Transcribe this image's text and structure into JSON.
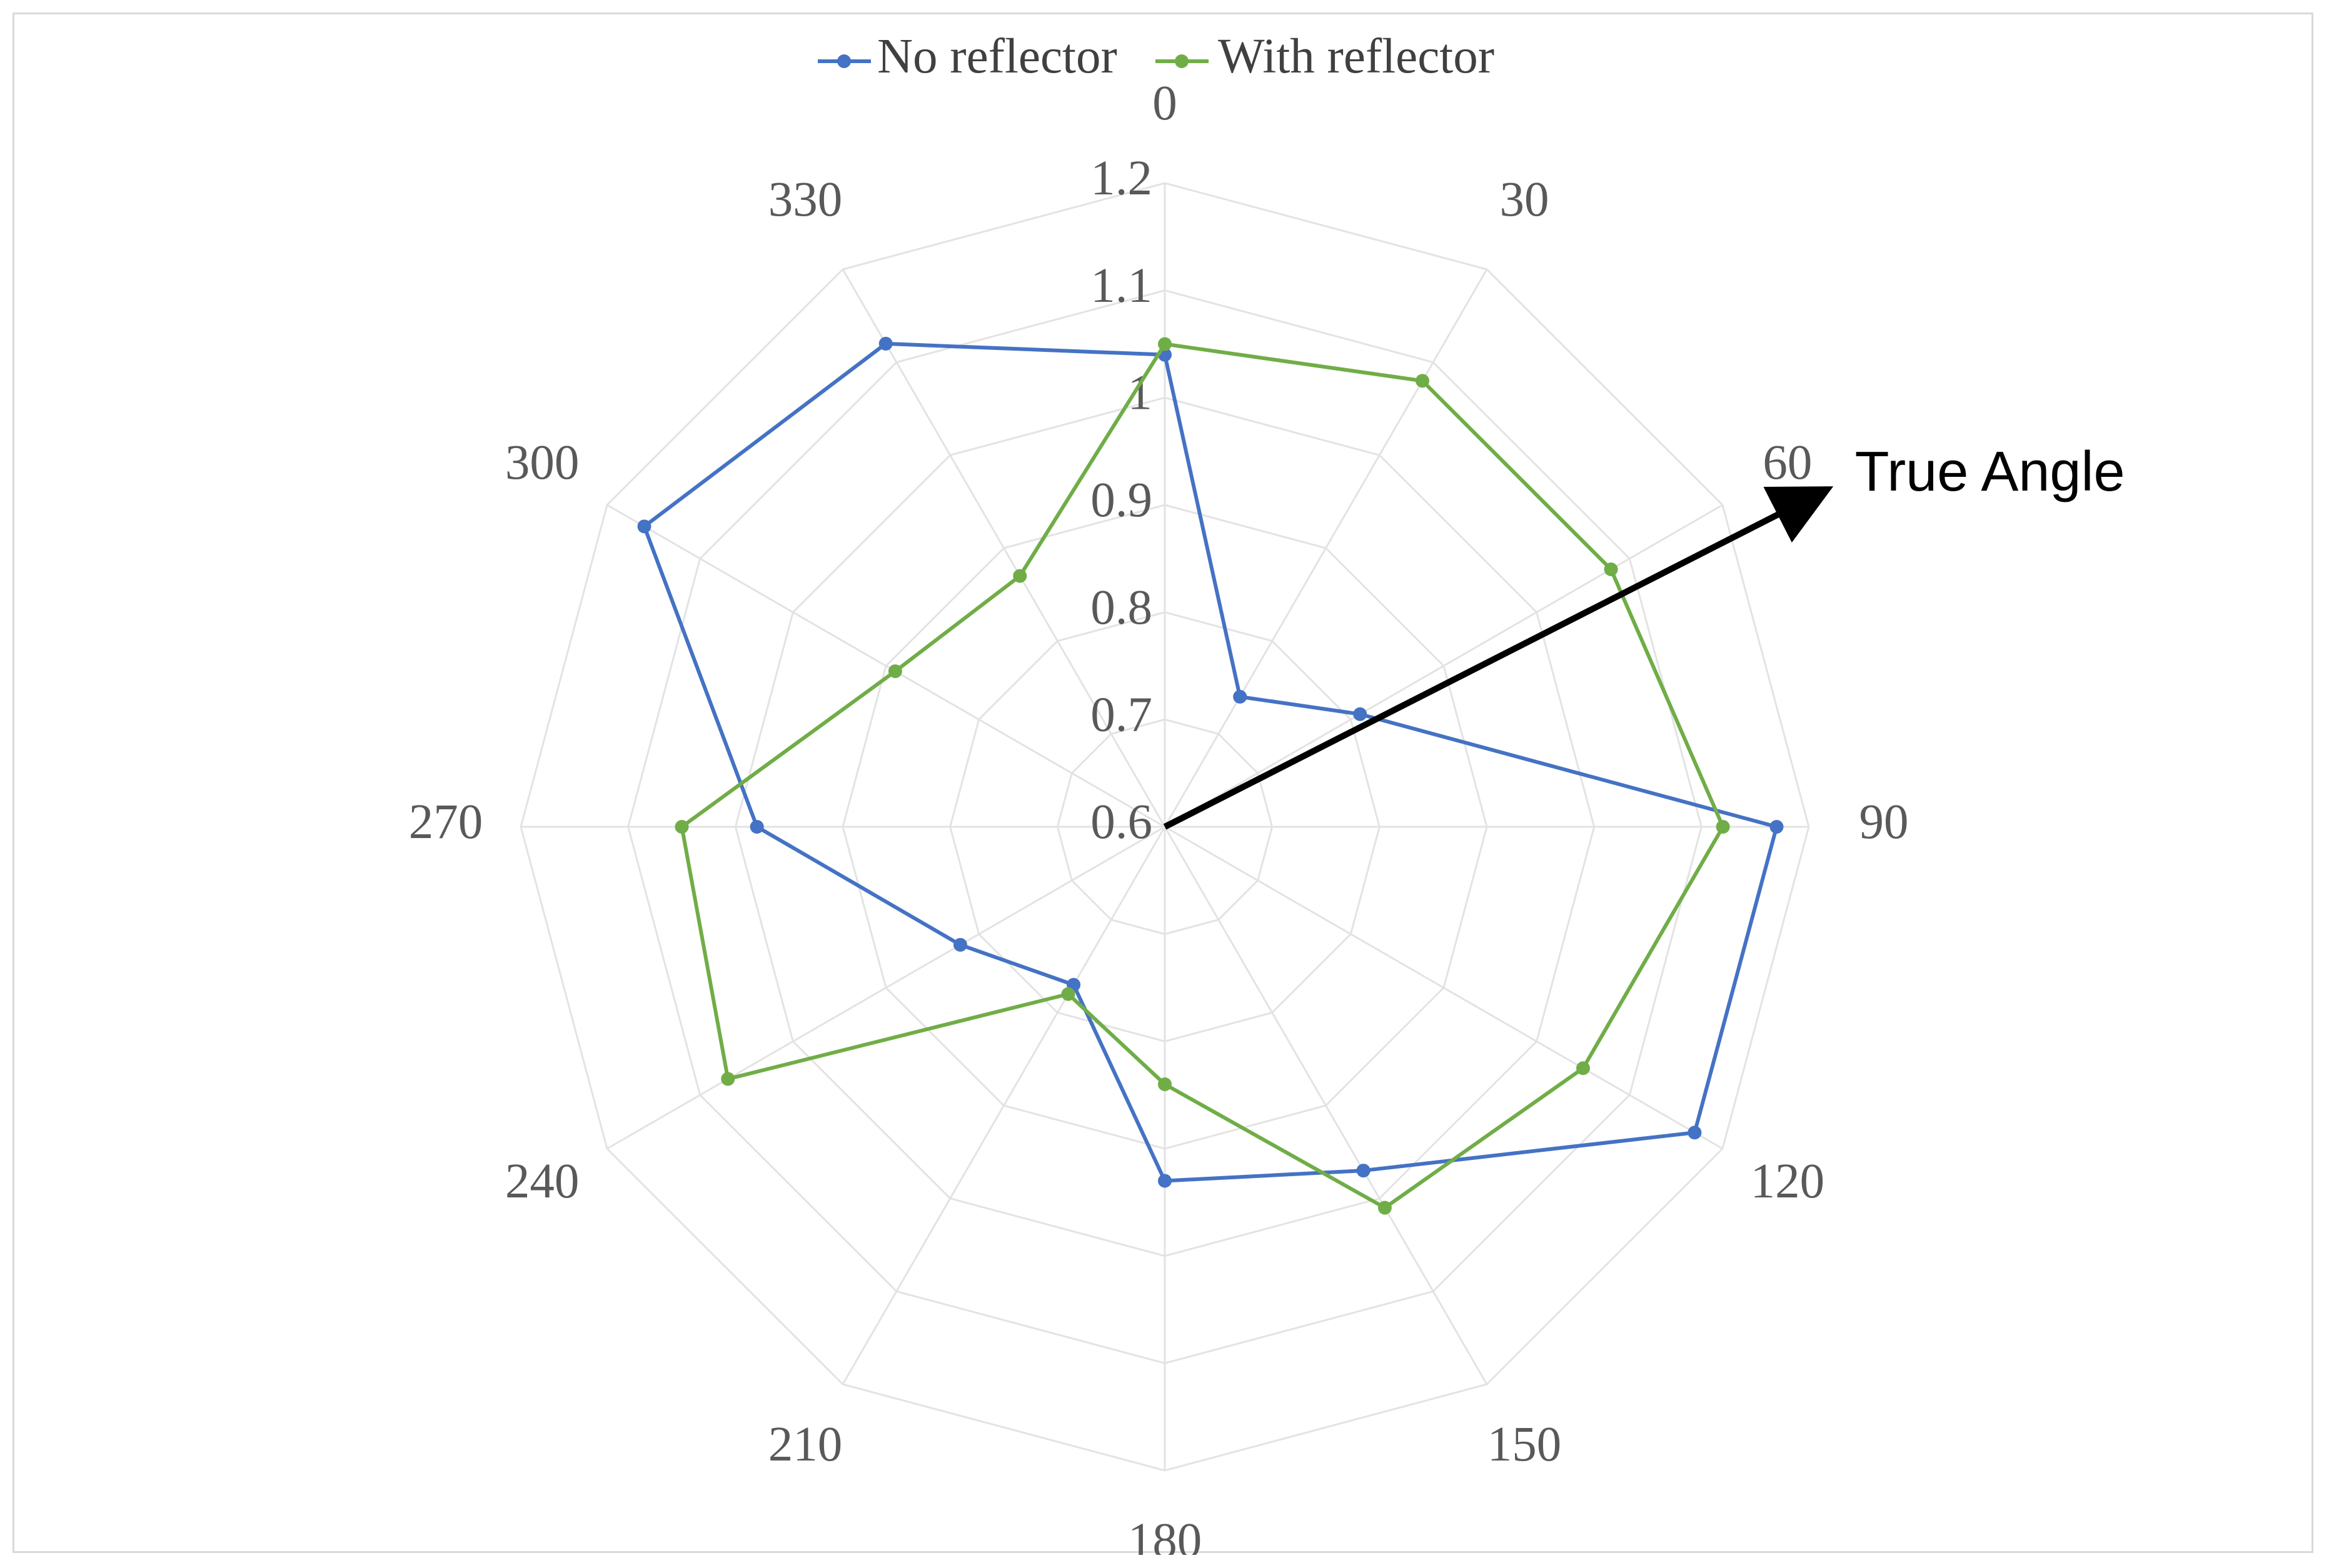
{
  "chart_data": {
    "type": "radar",
    "categories": [
      "0",
      "30",
      "60",
      "90",
      "120",
      "150",
      "180",
      "210",
      "240",
      "270",
      "300",
      "330"
    ],
    "angles": [
      0,
      30,
      60,
      90,
      120,
      150,
      180,
      210,
      240,
      270,
      300,
      330
    ],
    "radial_ticks": [
      "0.6",
      "0.7",
      "0.8",
      "0.9",
      "1",
      "1.1",
      "1.2"
    ],
    "rlim": [
      0.6,
      1.2
    ],
    "grid": true,
    "legend_position": "top",
    "series": [
      {
        "name": "No reflector",
        "color": "#4472C4",
        "values": [
          1.04,
          0.74,
          0.81,
          1.17,
          1.17,
          0.97,
          0.93,
          0.77,
          0.82,
          0.98,
          1.16,
          1.12
        ]
      },
      {
        "name": "With reflector",
        "color": "#70AD47",
        "values": [
          1.05,
          1.08,
          1.08,
          1.12,
          1.05,
          1.01,
          0.84,
          0.78,
          1.07,
          1.05,
          0.89,
          0.87
        ]
      }
    ],
    "annotation": {
      "text": "True Angle",
      "direction_deg": 63,
      "color": "#000000"
    }
  }
}
